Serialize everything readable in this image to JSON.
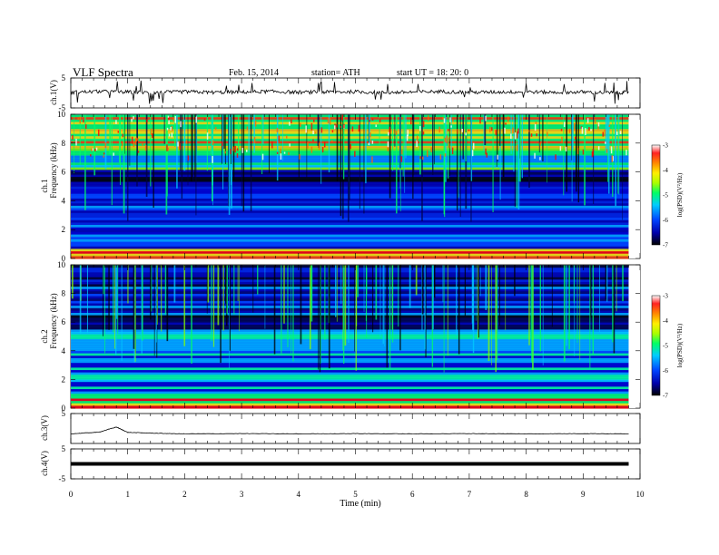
{
  "header": {
    "title": "VLF  Spectra",
    "date": "Feb. 15, 2014",
    "station": "station= ATH",
    "start": "start  UT  =   18: 20: 0"
  },
  "colorbar": {
    "label": "log(PSD)(V²/Hz)",
    "ticks": [
      "-3",
      "-4",
      "-5",
      "-6",
      "-7"
    ]
  },
  "panel_labels": {
    "ch1_wave": "ch.1(V)",
    "ch1_spec_a": "ch.1",
    "ch1_spec_b": "Frequency  (kHz)",
    "ch2_spec_a": "ch.2",
    "ch2_spec_b": "Frequency  (kHz)",
    "ch3_wave": "ch.3(V)",
    "ch4_wave": "ch.4(V)"
  },
  "chart_data": [
    {
      "type": "line",
      "name": "ch1-waveform",
      "ylabel": "ch.1(V)",
      "ylim": [
        -5,
        5
      ],
      "yticks": [
        5,
        -5
      ],
      "x": [
        0,
        0.5,
        1,
        1.5,
        2,
        2.5,
        3,
        3.5,
        4,
        4.5,
        5,
        5.5,
        6,
        6.5,
        7,
        7.5,
        8,
        8.5,
        9,
        9.5,
        9.8
      ],
      "y": [
        0.2,
        0.5,
        0.3,
        0.1,
        0.4,
        0.2,
        0.3,
        0.5,
        0.2,
        0.3,
        0.4,
        0.1,
        0.3,
        0.5,
        0.2,
        0.3,
        0.4,
        0.2,
        0.3,
        0.1,
        0.2
      ]
    },
    {
      "type": "heatmap",
      "name": "ch1-spectrogram",
      "ylabel": "Frequency  (kHz)",
      "ylim": [
        0,
        10
      ],
      "yticks": [
        0,
        2,
        4,
        6,
        8,
        10
      ],
      "zlabel": "log(PSD)(V²/Hz)",
      "zlim": [
        -7,
        -3
      ]
    },
    {
      "type": "heatmap",
      "name": "ch2-spectrogram",
      "ylabel": "Frequency  (kHz)",
      "ylim": [
        0,
        10
      ],
      "yticks": [
        0,
        2,
        4,
        6,
        8,
        10
      ],
      "zlabel": "log(PSD)(V²/Hz)",
      "zlim": [
        -7,
        -3
      ]
    },
    {
      "type": "line",
      "name": "ch3-waveform",
      "ylabel": "ch.3(V)",
      "ylim": [
        -5,
        5
      ],
      "yticks": [
        5
      ],
      "x": [
        0,
        0.5,
        0.8,
        1,
        1.5,
        2,
        3,
        4,
        5,
        6,
        7,
        8,
        9,
        9.8
      ],
      "y": [
        -1.8,
        -1.2,
        0.5,
        -1.3,
        -1.6,
        -1.8,
        -1.7,
        -1.8,
        -1.7,
        -1.8,
        -1.7,
        -1.8,
        -1.7,
        -1.8
      ]
    },
    {
      "type": "line",
      "name": "ch4-waveform",
      "ylabel": "ch.4(V)",
      "ylim": [
        -5,
        5
      ],
      "yticks": [
        5,
        -5
      ],
      "x": [
        0,
        9.8
      ],
      "y": [
        0,
        0
      ]
    }
  ],
  "xaxis": {
    "label": "Time  (min)",
    "ticks": [
      "0",
      "1",
      "2",
      "3",
      "4",
      "5",
      "6",
      "7",
      "8",
      "9",
      "10"
    ],
    "xlim": [
      0,
      10
    ]
  },
  "colors": {
    "waveform": "#000000",
    "colormap": [
      "#000000",
      "#00008b",
      "#0000ff",
      "#00aaff",
      "#00ff66",
      "#aaff00",
      "#ffff00",
      "#ff8800",
      "#ff0000",
      "#ffffff"
    ]
  }
}
